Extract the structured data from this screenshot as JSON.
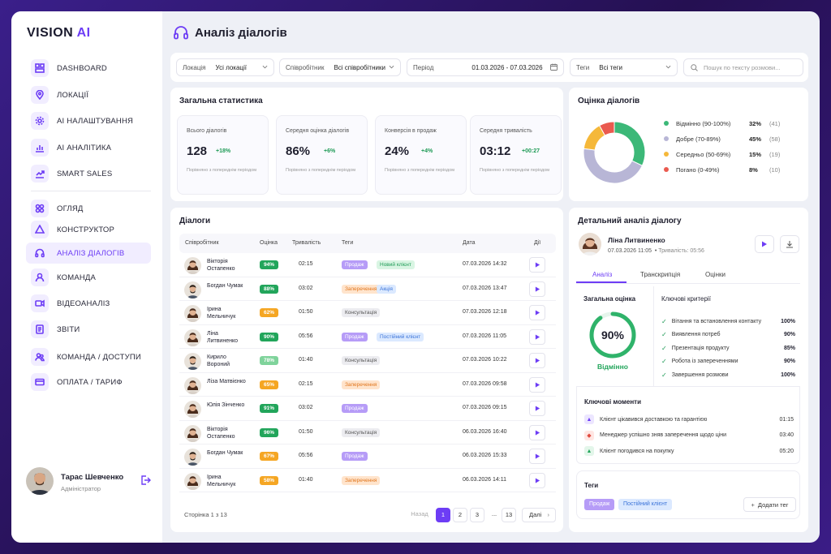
{
  "brand": {
    "name_main": "VISION",
    "name_accent": "AI"
  },
  "sidebar": {
    "items": [
      {
        "label": "DASHBOARD",
        "icon": "dashboard-icon"
      },
      {
        "label": "ЛОКАЦІЇ",
        "icon": "location-icon"
      },
      {
        "label": "AI НАЛАШТУВАННЯ",
        "icon": "gear-icon"
      },
      {
        "label": "AI АНАЛІТИКА",
        "icon": "bar-chart-icon"
      },
      {
        "label": "SMART SALES",
        "icon": "trend-icon"
      },
      {
        "label": "ОГЛЯД",
        "icon": "grid-icon"
      },
      {
        "label": "КОНСТРУКТОР",
        "icon": "constructor-icon"
      },
      {
        "label": "АНАЛІЗ ДІАЛОГІВ",
        "icon": "headphones-icon",
        "active": true
      },
      {
        "label": "КОМАНДА",
        "icon": "user-icon"
      },
      {
        "label": "ВІДЕОАНАЛІЗ",
        "icon": "video-icon"
      },
      {
        "label": "ЗВІТИ",
        "icon": "report-icon"
      },
      {
        "label": "КОМАНДА / ДОСТУПИ",
        "icon": "team-icon"
      },
      {
        "label": "ОПЛАТА / ТАРИФ",
        "icon": "card-icon"
      }
    ],
    "user": {
      "name": "Тарас Шевченко",
      "role": "Адміністратор"
    }
  },
  "header": {
    "title": "Аналіз діалогів"
  },
  "filters": {
    "location": {
      "label": "Локація",
      "value": "Усі локації"
    },
    "employee": {
      "label": "Співробітник",
      "value": "Всі співробітники"
    },
    "period": {
      "label": "Період",
      "value": "01.03.2026 - 07.03.2026"
    },
    "tags": {
      "label": "Теги",
      "value": "Всі теги"
    },
    "search_placeholder": "Пошук по тексту розмови..."
  },
  "stats": {
    "title": "Загальна статистика",
    "note": "Порівняно з попереднім періодом",
    "items": [
      {
        "label": "Всього діалогів",
        "value": "128",
        "delta": "+18%"
      },
      {
        "label": "Середня оцінка діалогів",
        "value": "86%",
        "delta": "+6%"
      },
      {
        "label": "Конверсія в продаж",
        "value": "24%",
        "delta": "+4%"
      },
      {
        "label": "Середня тривалість",
        "value": "03:12",
        "delta": "+00:27"
      }
    ]
  },
  "rating": {
    "title": "Оцінка діалогів",
    "legend": [
      {
        "label": "Відмінно (90-100%)",
        "percent": "32%",
        "count": "(41)",
        "color": "#3cb878"
      },
      {
        "label": "Добре (70-89%)",
        "percent": "45%",
        "count": "(58)",
        "color": "#b8b6d6"
      },
      {
        "label": "Середньо (50-69%)",
        "percent": "15%",
        "count": "(19)",
        "color": "#f5b83a"
      },
      {
        "label": "Погано (0-49%)",
        "percent": "8%",
        "count": "(10)",
        "color": "#ea5a4f"
      }
    ]
  },
  "dialogs": {
    "title": "Діалоги",
    "columns": {
      "employee": "Співробітник",
      "score": "Оцінка",
      "duration": "Тривалість",
      "tags": "Теги",
      "date": "Дата",
      "actions": "Дії"
    },
    "rows": [
      {
        "name": "Вікторія Остапенко",
        "score": "94%",
        "score_color": "#22a55b",
        "duration": "02:15",
        "tags": [
          {
            "t": "Продаж",
            "c": "sale"
          },
          {
            "t": "Новий клієнт",
            "c": "new"
          }
        ],
        "date": "07.03.2026 14:32",
        "avatar": "f"
      },
      {
        "name": "Богдан Чумак",
        "score": "88%",
        "score_color": "#22a55b",
        "duration": "03:02",
        "tags": [
          {
            "t": "Заперечення",
            "c": "obj"
          },
          {
            "t": "Акція",
            "c": "act"
          }
        ],
        "date": "07.03.2026 13:47",
        "avatar": "m"
      },
      {
        "name": "Ірина Мельничук",
        "score": "62%",
        "score_color": "#f5a623",
        "duration": "01:50",
        "tags": [
          {
            "t": "Консультація",
            "c": "cons"
          }
        ],
        "date": "07.03.2026 12:18",
        "avatar": "f"
      },
      {
        "name": "Ліна Литвиненко",
        "score": "90%",
        "score_color": "#22a55b",
        "duration": "05:56",
        "tags": [
          {
            "t": "Продаж",
            "c": "sale"
          },
          {
            "t": "Постійний клієнт",
            "c": "reg"
          }
        ],
        "date": "07.03.2026 11:05",
        "avatar": "f"
      },
      {
        "name": "Кирило Вороний",
        "score": "78%",
        "score_color": "#7fd39b",
        "duration": "01:40",
        "tags": [
          {
            "t": "Консультація",
            "c": "cons"
          }
        ],
        "date": "07.03.2026 10:22",
        "avatar": "m"
      },
      {
        "name": "Ліза Матвієнко",
        "score": "65%",
        "score_color": "#f5a623",
        "duration": "02:15",
        "tags": [
          {
            "t": "Заперечення",
            "c": "obj"
          }
        ],
        "date": "07.03.2026 09:58",
        "avatar": "f"
      },
      {
        "name": "Юлія Зінченко",
        "score": "91%",
        "score_color": "#22a55b",
        "duration": "03:02",
        "tags": [
          {
            "t": "Продаж",
            "c": "sale"
          }
        ],
        "date": "07.03.2026 09:15",
        "avatar": "f"
      },
      {
        "name": "Вікторія Остапенко",
        "score": "96%",
        "score_color": "#22a55b",
        "duration": "01:50",
        "tags": [
          {
            "t": "Консультація",
            "c": "cons"
          }
        ],
        "date": "06.03.2026 16:40",
        "avatar": "f"
      },
      {
        "name": "Богдан Чумак",
        "score": "67%",
        "score_color": "#f5a623",
        "duration": "05:56",
        "tags": [
          {
            "t": "Продаж",
            "c": "sale"
          }
        ],
        "date": "06.03.2026 15:33",
        "avatar": "m"
      },
      {
        "name": "Ірина Мельничук",
        "score": "58%",
        "score_color": "#f5a623",
        "duration": "01:40",
        "tags": [
          {
            "t": "Заперечення",
            "c": "obj"
          }
        ],
        "date": "06.03.2026 14:11",
        "avatar": "f"
      }
    ],
    "pager": {
      "info": "Сторінка 1 з 13",
      "prev": "Назад",
      "pages": [
        "1",
        "2",
        "3",
        "...",
        "13"
      ],
      "next": "Далі"
    }
  },
  "detail": {
    "title": "Детальний аналіз діалогу",
    "name": "Ліна Литвиненко",
    "meta_date": "07.03.2026 11:05",
    "meta_duration": "Тривалість: 05:56",
    "tabs": [
      "Аналіз",
      "Транскрипція",
      "Оцінки"
    ],
    "overall_label": "Загальна оцінка",
    "overall_value": "90%",
    "overall_fraction": 0.9,
    "overall_text": "Відмінно",
    "criteria_title": "Ключові критерії",
    "criteria": [
      {
        "label": "Вітання та встановлення контакту",
        "value": "100%"
      },
      {
        "label": "Виявлення потреб",
        "value": "90%"
      },
      {
        "label": "Презентація продукту",
        "value": "85%"
      },
      {
        "label": "Робота із запереченнями",
        "value": "90%"
      },
      {
        "label": "Завершення розмови",
        "value": "100%"
      }
    ],
    "moments_title": "Ключові моменти",
    "moments": [
      {
        "text": "Клієнт цікавився доставкою та гарантією",
        "time": "01:15"
      },
      {
        "text": "Менеджер успішно зняв заперечення щодо ціни",
        "time": "03:40"
      },
      {
        "text": "Клієнт погодився на покупку",
        "time": "05:20"
      }
    ],
    "tags_title": "Теги",
    "tags": [
      "Продаж",
      "Постійний клієнт"
    ],
    "add_tag": "Додати тег"
  }
}
